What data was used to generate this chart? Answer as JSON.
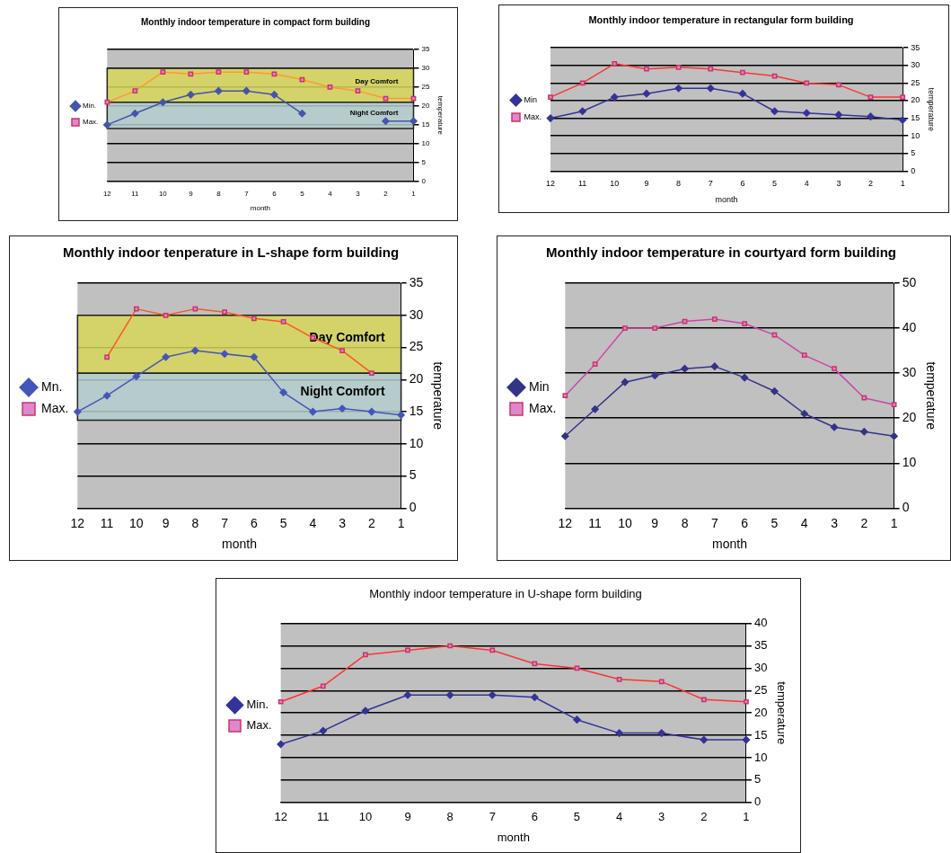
{
  "chart_data": [
    {
      "type": "line",
      "title": "Monthly indoor temperature in compact form building",
      "xlabel": "month",
      "ylabel": "temperature",
      "categories": [
        "12",
        "11",
        "10",
        "9",
        "8",
        "7",
        "6",
        "5",
        "4",
        "3",
        "2",
        "1"
      ],
      "series": [
        {
          "name": "Min.",
          "color": "#4455aa",
          "marker": "diamond",
          "values": [
            15,
            18,
            21,
            23,
            24,
            24,
            23,
            18,
            null,
            null,
            16,
            16
          ]
        },
        {
          "name": "Max.",
          "color": "#ff9933",
          "marker": "square",
          "values": [
            21,
            24,
            29,
            28.5,
            29,
            29,
            28.5,
            27,
            25,
            24,
            22,
            22
          ]
        }
      ],
      "bands": [
        {
          "axis": "y",
          "from": 21,
          "to": 30,
          "label": "Day Comfort",
          "color": "#d6d65a"
        },
        {
          "axis": "y",
          "from": 14,
          "to": 21,
          "label": "Night Comfort",
          "color": "#b4cccc"
        }
      ],
      "ylim": [
        0,
        35
      ],
      "yticks": [
        0,
        5,
        10,
        15,
        20,
        25,
        30,
        35
      ],
      "grid": "y",
      "legend": "left"
    },
    {
      "type": "line",
      "title": "Monthly indoor temperature in rectangular form building",
      "xlabel": "month",
      "ylabel": "temperature",
      "categories": [
        "12",
        "11",
        "10",
        "9",
        "8",
        "7",
        "6",
        "5",
        "4",
        "3",
        "2",
        "1"
      ],
      "series": [
        {
          "name": "Min",
          "color": "#333399",
          "marker": "diamond",
          "values": [
            15,
            17,
            21,
            22,
            23.5,
            23.5,
            22,
            17,
            16.5,
            16,
            15.5,
            14.5
          ]
        },
        {
          "name": "Max.",
          "color": "#ff3333",
          "marker": "square",
          "values": [
            21,
            25,
            30.5,
            29,
            29.5,
            29,
            28,
            27,
            25,
            24.5,
            21,
            21
          ]
        }
      ],
      "ylim": [
        0,
        35
      ],
      "yticks": [
        0,
        5,
        10,
        15,
        20,
        25,
        30,
        35
      ],
      "grid": "y",
      "legend": "left"
    },
    {
      "type": "line",
      "title": "Monthly indoor tenperature in L-shape form building",
      "xlabel": "month",
      "ylabel": "temperature",
      "categories": [
        "12",
        "11",
        "10",
        "9",
        "8",
        "7",
        "6",
        "5",
        "4",
        "3",
        "2",
        "1"
      ],
      "series": [
        {
          "name": "Mn.",
          "color": "#4455bb",
          "marker": "diamond",
          "values": [
            15,
            17.5,
            20.5,
            23.5,
            24.5,
            24,
            23.5,
            18,
            15,
            15.5,
            15,
            14.5
          ]
        },
        {
          "name": "Max.",
          "color": "#ff5522",
          "marker": "square",
          "values": [
            null,
            23.5,
            31,
            30,
            31,
            30.5,
            29.5,
            29,
            26.5,
            24.5,
            21,
            null
          ]
        }
      ],
      "bands": [
        {
          "axis": "y",
          "from": 21,
          "to": 30,
          "label": "Day Comfort",
          "color": "#d6d65a"
        },
        {
          "axis": "y",
          "from": 13.7,
          "to": 21,
          "label": "Night Comfort",
          "color": "#b4cccc"
        }
      ],
      "ylim": [
        0,
        35
      ],
      "yticks": [
        0,
        5,
        10,
        15,
        20,
        25,
        30,
        35
      ],
      "grid": "y",
      "legend": "left"
    },
    {
      "type": "line",
      "title": "Monthly indoor temperature in courtyard form building",
      "xlabel": "month",
      "ylabel": "temperature",
      "categories": [
        "12",
        "11",
        "10",
        "9",
        "8",
        "7",
        "6",
        "5",
        "4",
        "3",
        "2",
        "1"
      ],
      "series": [
        {
          "name": "Min",
          "color": "#333388",
          "marker": "diamond",
          "values": [
            16,
            22,
            28,
            29.5,
            31,
            31.5,
            29,
            26,
            21,
            18,
            17,
            16
          ]
        },
        {
          "name": "Max.",
          "color": "#cc44aa",
          "marker": "square",
          "values": [
            25,
            32,
            40,
            40,
            41.5,
            42,
            41,
            38.5,
            34,
            31,
            24.5,
            23
          ]
        }
      ],
      "ylim": [
        0,
        50
      ],
      "yticks": [
        0,
        10,
        20,
        30,
        40,
        50
      ],
      "grid": "y",
      "legend": "left"
    },
    {
      "type": "line",
      "title": "Monthly indoor temperature in U-shape form building",
      "xlabel": "month",
      "ylabel": "temperature",
      "categories": [
        "12",
        "11",
        "10",
        "9",
        "8",
        "7",
        "6",
        "5",
        "4",
        "3",
        "2",
        "1"
      ],
      "series": [
        {
          "name": "Min.",
          "color": "#333399",
          "marker": "diamond",
          "values": [
            13,
            16,
            20.5,
            24,
            24,
            24,
            23.5,
            18.5,
            15.5,
            15.5,
            14,
            14
          ]
        },
        {
          "name": "Max.",
          "color": "#ff3333",
          "marker": "square",
          "values": [
            22.5,
            26,
            33,
            34,
            35,
            34,
            31,
            30,
            27.5,
            27,
            23,
            22.5
          ]
        }
      ],
      "ylim": [
        0,
        40
      ],
      "yticks": [
        0,
        5,
        10,
        15,
        20,
        25,
        30,
        35,
        40
      ],
      "grid": "y",
      "legend": "left"
    }
  ]
}
